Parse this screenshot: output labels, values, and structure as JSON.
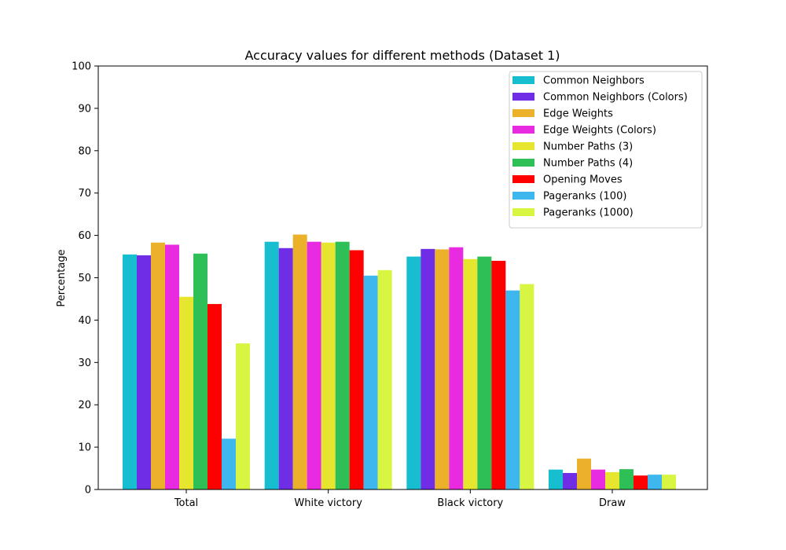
{
  "chart_data": {
    "type": "bar",
    "title": "Accuracy values for different methods (Dataset 1)",
    "xlabel": "",
    "ylabel": "Percentage",
    "ylim": [
      0,
      100
    ],
    "yticks": [
      0,
      10,
      20,
      30,
      40,
      50,
      60,
      70,
      80,
      90,
      100
    ],
    "grid": false,
    "legend_position": "top-right",
    "categories": [
      "Total",
      "White victory",
      "Black victory",
      "Draw"
    ],
    "series": [
      {
        "name": "Common Neighbors",
        "color": "#17becf",
        "values": [
          55.5,
          58.5,
          55.0,
          4.7
        ]
      },
      {
        "name": "Common Neighbors (Colors)",
        "color": "#6f2ee6",
        "values": [
          55.3,
          57.0,
          56.8,
          3.9
        ]
      },
      {
        "name": "Edge Weights",
        "color": "#ebb12b",
        "values": [
          58.3,
          60.2,
          56.7,
          7.3
        ]
      },
      {
        "name": "Edge Weights (Colors)",
        "color": "#e82ae0",
        "values": [
          57.8,
          58.5,
          57.2,
          4.7
        ]
      },
      {
        "name": "Number Paths (3)",
        "color": "#e6e62e",
        "values": [
          45.5,
          58.3,
          54.4,
          4.1
        ]
      },
      {
        "name": "Number Paths (4)",
        "color": "#2ebf56",
        "values": [
          55.7,
          58.5,
          55.0,
          4.8
        ]
      },
      {
        "name": "Opening Moves",
        "color": "#ff0000",
        "values": [
          43.8,
          56.5,
          54.0,
          3.3
        ]
      },
      {
        "name": "Pageranks (100)",
        "color": "#3db7ee",
        "values": [
          12.0,
          50.5,
          47.0,
          3.5
        ]
      },
      {
        "name": "Pageranks (1000)",
        "color": "#d8f542",
        "values": [
          34.5,
          51.8,
          48.5,
          3.5
        ]
      }
    ]
  }
}
